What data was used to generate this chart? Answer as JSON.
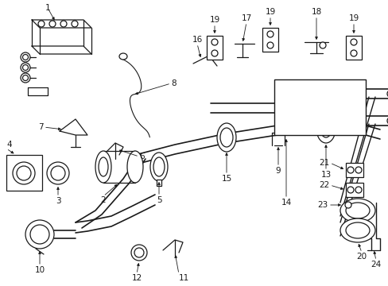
{
  "bg_color": "#ffffff",
  "line_color": "#1a1a1a",
  "figsize": [
    4.89,
    3.6
  ],
  "dpi": 100,
  "label_fontsize": 7.5,
  "lw": 0.9,
  "alw": 0.6
}
